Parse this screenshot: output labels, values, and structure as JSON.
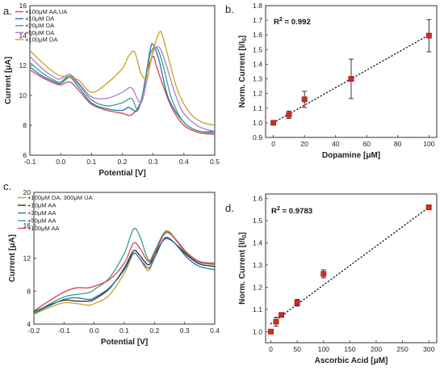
{
  "chart_data": [
    {
      "panel": "a.",
      "type": "line",
      "xlabel": "Potential [V]",
      "ylabel": "Current [μA]",
      "xlim": [
        -0.1,
        0.5
      ],
      "ylim": [
        6,
        16
      ],
      "xticks": [
        "-0.1",
        "0.0",
        "0.1",
        "0.2",
        "0.3",
        "0.4",
        "0.5"
      ],
      "yticks": [
        "6",
        "8",
        "10",
        "12",
        "14",
        "16"
      ],
      "legend": "top-left",
      "series": [
        {
          "name": "+100μM AA,UA",
          "color": "#d9434e",
          "x": [
            -0.1,
            -0.06,
            -0.02,
            0.0,
            0.03,
            0.06,
            0.1,
            0.15,
            0.2,
            0.23,
            0.26,
            0.28,
            0.3,
            0.31,
            0.33,
            0.36,
            0.4,
            0.45,
            0.5
          ],
          "y": [
            11.7,
            11.2,
            10.8,
            10.7,
            10.9,
            10.3,
            9.4,
            9.0,
            8.8,
            8.7,
            9.6,
            11.6,
            12.6,
            12.0,
            10.8,
            9.2,
            8.0,
            7.5,
            7.4
          ]
        },
        {
          "name": "+10μM DA",
          "color": "#2a6fb5",
          "x": [
            -0.1,
            -0.06,
            -0.02,
            0.0,
            0.03,
            0.06,
            0.1,
            0.15,
            0.2,
            0.22,
            0.25,
            0.27,
            0.29,
            0.3,
            0.32,
            0.35,
            0.4,
            0.45,
            0.5
          ],
          "y": [
            11.9,
            11.3,
            10.9,
            10.8,
            11.2,
            10.5,
            9.5,
            9.1,
            9.0,
            9.2,
            9.0,
            10.5,
            13.0,
            13.4,
            12.3,
            9.8,
            8.2,
            7.6,
            7.6
          ]
        },
        {
          "name": "+20μM DA",
          "color": "#3a9e86",
          "x": [
            -0.1,
            -0.06,
            -0.02,
            0.0,
            0.03,
            0.06,
            0.1,
            0.15,
            0.2,
            0.23,
            0.25,
            0.27,
            0.29,
            0.31,
            0.33,
            0.36,
            0.4,
            0.45,
            0.5
          ],
          "y": [
            12.2,
            11.5,
            11.0,
            10.9,
            11.3,
            10.7,
            9.7,
            9.3,
            9.5,
            9.8,
            9.1,
            10.4,
            12.7,
            13.2,
            12.2,
            9.8,
            8.2,
            7.6,
            7.5
          ]
        },
        {
          "name": "+50μM DA",
          "color": "#b07ad4",
          "x": [
            -0.1,
            -0.06,
            -0.02,
            0.0,
            0.03,
            0.06,
            0.1,
            0.15,
            0.2,
            0.23,
            0.26,
            0.28,
            0.3,
            0.32,
            0.34,
            0.37,
            0.4,
            0.45,
            0.5
          ],
          "y": [
            12.6,
            11.8,
            11.2,
            11.1,
            11.4,
            10.8,
            9.9,
            9.8,
            10.2,
            10.5,
            9.5,
            11.0,
            12.9,
            13.2,
            12.2,
            10.2,
            8.8,
            7.9,
            7.6
          ]
        },
        {
          "name": "+100μM DA",
          "color": "#c9a21d",
          "x": [
            -0.1,
            -0.06,
            -0.02,
            0.0,
            0.03,
            0.06,
            0.1,
            0.15,
            0.2,
            0.22,
            0.24,
            0.26,
            0.28,
            0.3,
            0.32,
            0.33,
            0.35,
            0.38,
            0.42,
            0.46,
            0.5
          ],
          "y": [
            13.0,
            12.2,
            11.5,
            11.3,
            11.2,
            11.0,
            10.2,
            10.8,
            11.8,
            12.6,
            12.9,
            11.5,
            11.2,
            13.0,
            14.2,
            14.0,
            12.5,
            10.3,
            8.8,
            8.2,
            8.0
          ]
        }
      ]
    },
    {
      "panel": "b.",
      "type": "scatter",
      "xlabel": "Dopamine [μM]",
      "ylabel": "Norm. Current [I/I0]",
      "xlim": [
        -5,
        105
      ],
      "ylim": [
        0.9,
        1.8
      ],
      "xticks": [
        "0",
        "20",
        "40",
        "60",
        "80",
        "100"
      ],
      "yticks": [
        "0.9",
        "1.0",
        "1.1",
        "1.2",
        "1.3",
        "1.4",
        "1.5",
        "1.6",
        "1.7",
        "1.8"
      ],
      "annotation": "R² = 0.992",
      "fit": "linear, dotted",
      "fit_line": {
        "x": [
          0,
          100
        ],
        "y": [
          1.0,
          1.6
        ]
      },
      "marker_color": "#d42a1f",
      "x": [
        0,
        10,
        20,
        50,
        100
      ],
      "y": [
        1.0,
        1.055,
        1.16,
        1.3,
        1.595
      ],
      "error": [
        0,
        0.025,
        0.055,
        0.135,
        0.11
      ]
    },
    {
      "panel": "c.",
      "type": "line",
      "xlabel": "Potential [V]",
      "ylabel": "Current [μA]",
      "xlim": [
        -0.2,
        0.4
      ],
      "ylim": [
        4,
        20
      ],
      "xticks": [
        "-0.2",
        "-0.1",
        "0.0",
        "0.1",
        "0.2",
        "0.3",
        "0.4"
      ],
      "yticks": [
        "4",
        "8",
        "12",
        "16",
        "20"
      ],
      "legend": "top-left",
      "series": [
        {
          "name": "+100μM DA, 300μM UA",
          "color": "#c9a21d",
          "x": [
            -0.2,
            -0.15,
            -0.1,
            -0.06,
            -0.02,
            0.0,
            0.05,
            0.1,
            0.13,
            0.15,
            0.18,
            0.2,
            0.23,
            0.25,
            0.28,
            0.31,
            0.35,
            0.4
          ],
          "y": [
            5.2,
            6.0,
            6.6,
            6.5,
            6.3,
            6.5,
            7.5,
            10.2,
            12.5,
            12.0,
            10.5,
            12.4,
            15.0,
            15.2,
            13.8,
            12.4,
            11.5,
            11.2
          ]
        },
        {
          "name": "+10μM AA",
          "color": "#2b2b2b",
          "x": [
            -0.2,
            -0.15,
            -0.1,
            -0.06,
            -0.02,
            0.0,
            0.05,
            0.1,
            0.13,
            0.15,
            0.18,
            0.2,
            0.23,
            0.25,
            0.28,
            0.31,
            0.35,
            0.4
          ],
          "y": [
            5.5,
            6.3,
            6.9,
            6.8,
            6.8,
            7.0,
            8.3,
            10.8,
            12.9,
            12.4,
            11.2,
            12.4,
            14.2,
            14.3,
            13.4,
            12.3,
            11.3,
            11.0
          ]
        },
        {
          "name": "+20μM AA",
          "color": "#2a6fb5",
          "x": [
            -0.2,
            -0.15,
            -0.1,
            -0.06,
            -0.02,
            0.0,
            0.05,
            0.1,
            0.13,
            0.15,
            0.18,
            0.2,
            0.23,
            0.25,
            0.28,
            0.31,
            0.35,
            0.4
          ],
          "y": [
            5.3,
            6.2,
            7.0,
            7.2,
            7.0,
            7.2,
            8.4,
            10.6,
            12.6,
            12.0,
            10.8,
            12.0,
            14.3,
            14.4,
            13.3,
            12.0,
            11.0,
            10.6
          ]
        },
        {
          "name": "+50μM AA",
          "color": "#3a9e86",
          "x": [
            -0.2,
            -0.15,
            -0.1,
            -0.06,
            -0.02,
            0.0,
            0.05,
            0.1,
            0.13,
            0.15,
            0.18,
            0.2,
            0.23,
            0.25,
            0.28,
            0.31,
            0.35,
            0.4
          ],
          "y": [
            5.4,
            6.4,
            7.3,
            7.6,
            7.8,
            8.2,
            9.6,
            12.6,
            15.5,
            14.8,
            11.8,
            12.8,
            15.0,
            15.1,
            13.8,
            12.5,
            11.5,
            11.3
          ]
        },
        {
          "name": "+100μM AA",
          "color": "#d9434e",
          "x": [
            -0.2,
            -0.15,
            -0.1,
            -0.06,
            -0.02,
            0.0,
            0.05,
            0.1,
            0.13,
            0.15,
            0.18,
            0.2,
            0.23,
            0.25,
            0.28,
            0.31,
            0.35,
            0.4
          ],
          "y": [
            5.6,
            6.8,
            7.9,
            8.4,
            8.4,
            8.6,
            9.4,
            11.4,
            13.8,
            13.3,
            11.6,
            12.5,
            14.8,
            15.0,
            13.9,
            12.6,
            11.6,
            11.4
          ]
        }
      ]
    },
    {
      "panel": "d.",
      "type": "scatter",
      "xlabel": "Ascorbic Acid [μM]",
      "ylabel": "Norm. Current [I/I0]",
      "xlim": [
        -10,
        315
      ],
      "ylim": [
        0.95,
        1.62
      ],
      "xticks": [
        "0",
        "50",
        "100",
        "150",
        "200",
        "250",
        "300"
      ],
      "yticks": [
        "1.0",
        "1.1",
        "1.2",
        "1.3",
        "1.4",
        "1.5",
        "1.6"
      ],
      "annotation": "R² = 0.9783",
      "fit": "linear, dotted",
      "fit_line": {
        "x": [
          0,
          300
        ],
        "y": [
          1.035,
          1.56
        ]
      },
      "marker_color": "#d42a1f",
      "x": [
        0,
        10,
        20,
        50,
        100,
        300
      ],
      "y": [
        1.0,
        1.045,
        1.075,
        1.13,
        1.26,
        1.56
      ],
      "error": [
        0,
        0.02,
        0.008,
        0.015,
        0.018,
        0.005
      ]
    }
  ]
}
